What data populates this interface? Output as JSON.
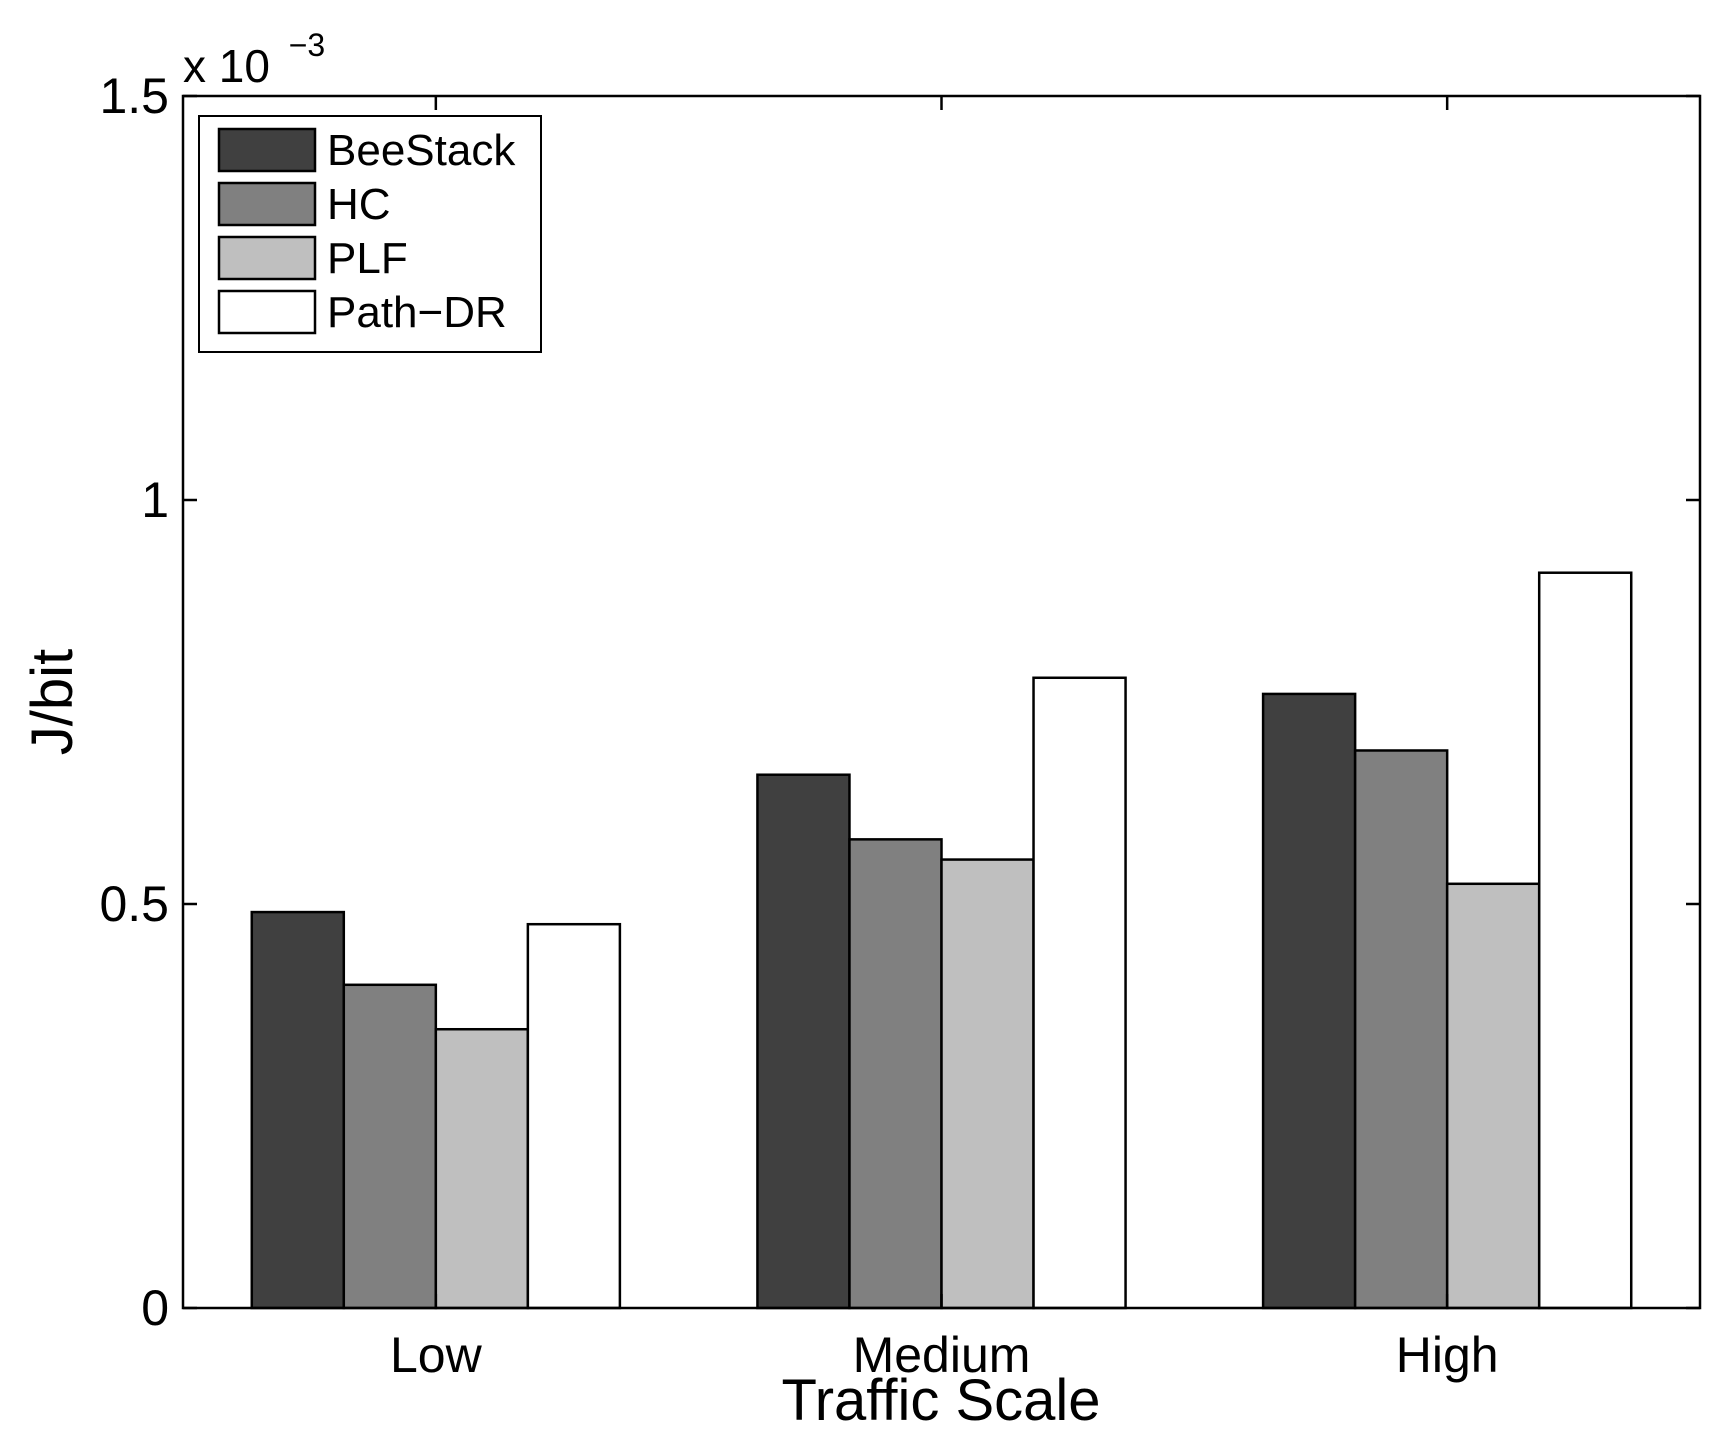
{
  "chart_data": {
    "type": "bar",
    "title": "",
    "xlabel": "Traffic Scale",
    "ylabel": "J/bit",
    "categories": [
      "Low",
      "Medium",
      "High"
    ],
    "series": [
      {
        "name": "BeeStack",
        "color": "#404040",
        "values": [
          0.49,
          0.66,
          0.76
        ]
      },
      {
        "name": "HC",
        "color": "#808080",
        "values": [
          0.4,
          0.58,
          0.69
        ]
      },
      {
        "name": "PLF",
        "color": "#bfbfbf",
        "values": [
          0.345,
          0.555,
          0.525
        ]
      },
      {
        "name": "Path−DR",
        "color": "#ffffff",
        "values": [
          0.475,
          0.78,
          0.91
        ]
      }
    ],
    "ylim": [
      0,
      1.5
    ],
    "yticks": [
      0,
      0.5,
      1,
      1.5
    ],
    "ytick_labels": [
      "0",
      "0.5",
      "1",
      "1.5"
    ],
    "y_exponent_prefix": "x 10",
    "y_exponent": "−3",
    "legend_position": "top-left",
    "grid": false
  }
}
